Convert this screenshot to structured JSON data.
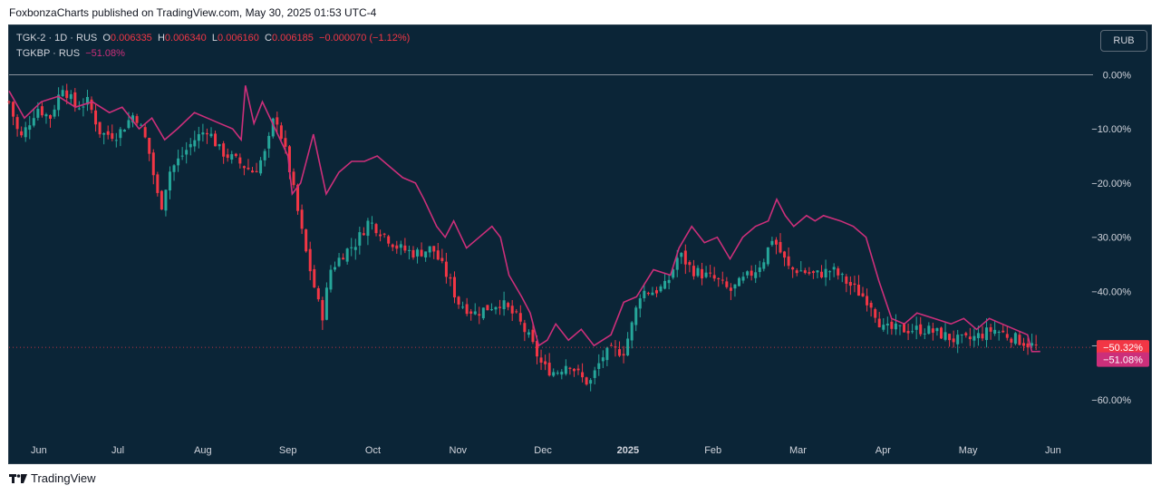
{
  "header": {
    "publish_text": "FoxbonzaCharts published on TradingView.com, May 30, 2025 01:53 UTC-4"
  },
  "legend": {
    "main": {
      "label": "TGK-2 · 1D · RUS",
      "o_key": "O",
      "o": "0.006335",
      "h_key": "H",
      "h": "0.006340",
      "l_key": "L",
      "l": "0.006160",
      "c_key": "C",
      "c": "0.006185",
      "change": "−0.000070 (−1.12%)"
    },
    "compare": {
      "label": "TGKBP · RUS",
      "value": "−51.08%"
    }
  },
  "currency_button": "RUB",
  "footer": {
    "brand": "TradingView"
  },
  "colors": {
    "background": "#0b2537",
    "up": "#26a69a",
    "down": "#f23645",
    "compare_line": "#cc2f7a",
    "zero_line": "#b2b5be"
  },
  "chart_data": {
    "type": "candlestick",
    "y_unit": "percent change",
    "y_ticks": [
      0,
      -10,
      -20,
      -30,
      -40,
      -50,
      -60
    ],
    "y_tick_labels": [
      "0.00%",
      "−10.00%",
      "−20.00%",
      "−30.00%",
      "−40.00%",
      "−50.00%",
      "−60.00%"
    ],
    "ylim": [
      -67.2,
      9.1
    ],
    "x_tick_labels": [
      "Jun",
      "Jul",
      "Aug",
      "Sep",
      "Oct",
      "Nov",
      "Dec",
      "2025",
      "Feb",
      "Mar",
      "Apr",
      "May",
      "Jun"
    ],
    "x_tick_positions": [
      0.07,
      1.0,
      2.0,
      3.0,
      4.0,
      5.0,
      6.0,
      7.0,
      8.0,
      9.0,
      10.0,
      11.0,
      12.0
    ],
    "xlim": [
      -0.28,
      12.47
    ],
    "price_labels": [
      {
        "value": -50.32,
        "text": "−50.32%",
        "color": "#f23645"
      },
      {
        "value": -51.08,
        "text": "−51.08%",
        "color": "#cc2f7a"
      }
    ],
    "series": [
      {
        "name": "TGK-2",
        "style": "candles",
        "anchors": [
          [
            -0.28,
            -5
          ],
          [
            -0.15,
            -12
          ],
          [
            0.05,
            -6
          ],
          [
            0.2,
            -8
          ],
          [
            0.35,
            -2
          ],
          [
            0.5,
            -6
          ],
          [
            0.65,
            -5
          ],
          [
            0.8,
            -11
          ],
          [
            1.0,
            -11
          ],
          [
            1.2,
            -7
          ],
          [
            1.35,
            -13
          ],
          [
            1.5,
            -25
          ],
          [
            1.6,
            -18
          ],
          [
            1.75,
            -15
          ],
          [
            1.9,
            -12
          ],
          [
            2.05,
            -10
          ],
          [
            2.2,
            -14
          ],
          [
            2.4,
            -16
          ],
          [
            2.6,
            -18
          ],
          [
            2.75,
            -14
          ],
          [
            2.85,
            -7
          ],
          [
            3.0,
            -16
          ],
          [
            3.1,
            -24
          ],
          [
            3.2,
            -32
          ],
          [
            3.4,
            -45
          ],
          [
            3.5,
            -36
          ],
          [
            3.65,
            -33
          ],
          [
            3.8,
            -31
          ],
          [
            3.95,
            -27
          ],
          [
            4.1,
            -29
          ],
          [
            4.3,
            -32
          ],
          [
            4.5,
            -33
          ],
          [
            4.7,
            -32
          ],
          [
            4.9,
            -38
          ],
          [
            5.0,
            -42
          ],
          [
            5.2,
            -44
          ],
          [
            5.35,
            -43
          ],
          [
            5.5,
            -42
          ],
          [
            5.7,
            -45
          ],
          [
            5.85,
            -49
          ],
          [
            6.0,
            -54
          ],
          [
            6.15,
            -55
          ],
          [
            6.3,
            -53
          ],
          [
            6.45,
            -56
          ],
          [
            6.55,
            -57
          ],
          [
            6.7,
            -52
          ],
          [
            6.8,
            -51
          ],
          [
            6.95,
            -51
          ],
          [
            7.05,
            -46
          ],
          [
            7.15,
            -40
          ],
          [
            7.3,
            -40
          ],
          [
            7.45,
            -39
          ],
          [
            7.6,
            -33
          ],
          [
            7.75,
            -36
          ],
          [
            7.9,
            -37
          ],
          [
            8.05,
            -38
          ],
          [
            8.2,
            -40
          ],
          [
            8.35,
            -38
          ],
          [
            8.5,
            -36
          ],
          [
            8.6,
            -34
          ],
          [
            8.7,
            -30
          ],
          [
            8.8,
            -33
          ],
          [
            8.9,
            -36
          ],
          [
            9.0,
            -36
          ],
          [
            9.2,
            -37
          ],
          [
            9.4,
            -36
          ],
          [
            9.55,
            -38
          ],
          [
            9.7,
            -40
          ],
          [
            9.85,
            -42
          ],
          [
            10.0,
            -47
          ],
          [
            10.15,
            -47
          ],
          [
            10.3,
            -47
          ],
          [
            10.5,
            -47
          ],
          [
            10.7,
            -48
          ],
          [
            10.85,
            -49
          ],
          [
            11.0,
            -49
          ],
          [
            11.15,
            -48
          ],
          [
            11.3,
            -47
          ],
          [
            11.45,
            -48
          ],
          [
            11.6,
            -49
          ],
          [
            11.8,
            -50.3
          ]
        ]
      },
      {
        "name": "TGKBP",
        "style": "line",
        "points": [
          [
            -0.28,
            -3
          ],
          [
            -0.1,
            -8
          ],
          [
            0.1,
            -5
          ],
          [
            0.3,
            -4
          ],
          [
            0.5,
            -6
          ],
          [
            0.7,
            -5
          ],
          [
            0.9,
            -7
          ],
          [
            1.05,
            -6
          ],
          [
            1.25,
            -10
          ],
          [
            1.4,
            -8
          ],
          [
            1.55,
            -12
          ],
          [
            1.7,
            -10
          ],
          [
            1.9,
            -7
          ],
          [
            2.05,
            -8
          ],
          [
            2.2,
            -9
          ],
          [
            2.35,
            -10
          ],
          [
            2.45,
            -12
          ],
          [
            2.5,
            -2
          ],
          [
            2.6,
            -9
          ],
          [
            2.7,
            -5
          ],
          [
            2.85,
            -10
          ],
          [
            3.0,
            -15
          ],
          [
            3.05,
            -22
          ],
          [
            3.15,
            -20
          ],
          [
            3.3,
            -11
          ],
          [
            3.45,
            -22
          ],
          [
            3.6,
            -18
          ],
          [
            3.75,
            -16
          ],
          [
            3.9,
            -16
          ],
          [
            4.05,
            -15
          ],
          [
            4.2,
            -17
          ],
          [
            4.35,
            -19
          ],
          [
            4.5,
            -20
          ],
          [
            4.6,
            -23
          ],
          [
            4.75,
            -28
          ],
          [
            4.85,
            -30
          ],
          [
            4.95,
            -27
          ],
          [
            5.1,
            -32
          ],
          [
            5.25,
            -30
          ],
          [
            5.4,
            -28
          ],
          [
            5.5,
            -30
          ],
          [
            5.6,
            -37
          ],
          [
            5.75,
            -41
          ],
          [
            5.85,
            -44
          ],
          [
            5.95,
            -50
          ],
          [
            6.05,
            -49
          ],
          [
            6.15,
            -46
          ],
          [
            6.3,
            -49
          ],
          [
            6.45,
            -47
          ],
          [
            6.6,
            -50
          ],
          [
            6.8,
            -48
          ],
          [
            6.95,
            -42
          ],
          [
            7.1,
            -41
          ],
          [
            7.3,
            -36
          ],
          [
            7.5,
            -37
          ],
          [
            7.6,
            -32
          ],
          [
            7.75,
            -28
          ],
          [
            7.9,
            -31
          ],
          [
            8.05,
            -30
          ],
          [
            8.2,
            -34
          ],
          [
            8.35,
            -30
          ],
          [
            8.5,
            -28
          ],
          [
            8.65,
            -27
          ],
          [
            8.75,
            -23
          ],
          [
            8.85,
            -26
          ],
          [
            8.95,
            -28
          ],
          [
            9.1,
            -26
          ],
          [
            9.2,
            -27
          ],
          [
            9.3,
            -26
          ],
          [
            9.5,
            -27
          ],
          [
            9.65,
            -28
          ],
          [
            9.8,
            -30
          ],
          [
            9.95,
            -38
          ],
          [
            10.1,
            -45
          ],
          [
            10.25,
            -46
          ],
          [
            10.4,
            -44
          ],
          [
            10.6,
            -45
          ],
          [
            10.8,
            -46
          ],
          [
            10.95,
            -45
          ],
          [
            11.1,
            -47
          ],
          [
            11.25,
            -45
          ],
          [
            11.4,
            -46
          ],
          [
            11.55,
            -47
          ],
          [
            11.7,
            -48
          ],
          [
            11.75,
            -51.1
          ],
          [
            11.85,
            -51.08
          ]
        ]
      }
    ]
  }
}
